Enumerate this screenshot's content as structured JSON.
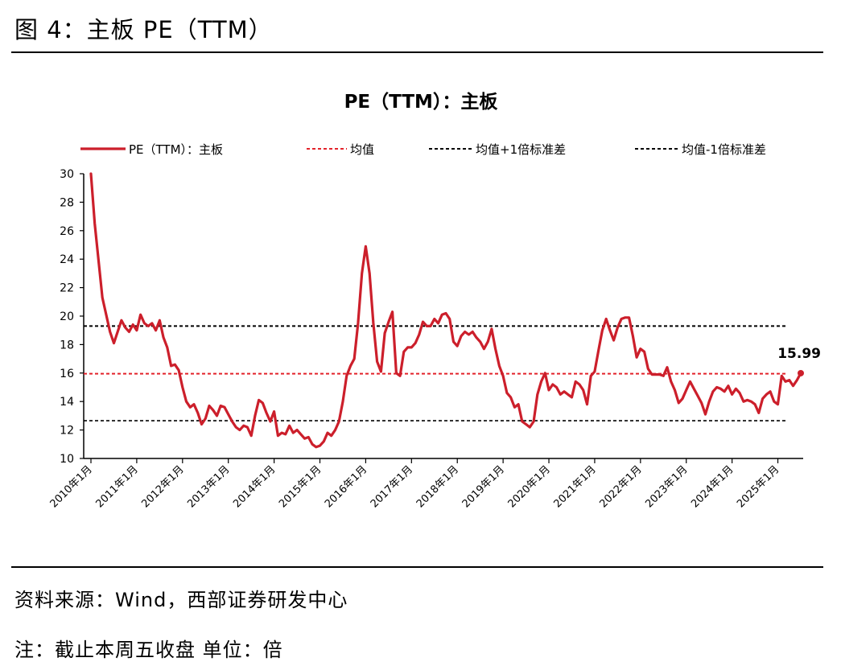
{
  "figure_title": "图 4：主板 PE（TTM）",
  "source_text": "资料来源：Wind，西部证券研发中心",
  "note_text": "注：截止本周五收盘 单位：倍",
  "colors": {
    "series": "#cc1f2b",
    "mean": "#e3232b",
    "band": "#000000"
  },
  "chart_data": {
    "type": "line",
    "title": "PE（TTM）：主板",
    "legend_position": "top",
    "legend": [
      {
        "label": "PE（TTM）：主板",
        "style": "solid"
      },
      {
        "label": "均值",
        "style": "dashed-red"
      },
      {
        "label": "均值+1倍标准差",
        "style": "dashed-black"
      },
      {
        "label": "均值-1倍标准差",
        "style": "dashed-black"
      }
    ],
    "ylim": [
      10,
      30
    ],
    "yticks": [
      10,
      12,
      14,
      16,
      18,
      20,
      22,
      24,
      26,
      28,
      30
    ],
    "xlim": [
      "2010-01",
      "2025-07"
    ],
    "xticks": [
      "2010年1月",
      "2011年1月",
      "2012年1月",
      "2013年1月",
      "2014年1月",
      "2015年1月",
      "2016年1月",
      "2017年1月",
      "2018年1月",
      "2019年1月",
      "2020年1月",
      "2021年1月",
      "2022年1月",
      "2023年1月",
      "2024年1月",
      "2025年1月"
    ],
    "grid": false,
    "mean": 15.95,
    "mean_plus_1sd": 19.3,
    "mean_minus_1sd": 12.65,
    "last_value_label": "15.99",
    "series": [
      {
        "name": "PE（TTM）：主板",
        "points": [
          [
            "2010-01",
            30.0
          ],
          [
            "2010-02",
            26.5
          ],
          [
            "2010-04",
            21.3
          ],
          [
            "2010-06",
            18.9
          ],
          [
            "2010-07",
            18.1
          ],
          [
            "2010-09",
            19.7
          ],
          [
            "2010-10",
            19.2
          ],
          [
            "2010-11",
            18.9
          ],
          [
            "2010-12",
            19.4
          ],
          [
            "2011-01",
            19.0
          ],
          [
            "2011-02",
            20.1
          ],
          [
            "2011-03",
            19.5
          ],
          [
            "2011-04",
            19.3
          ],
          [
            "2011-05",
            19.5
          ],
          [
            "2011-06",
            19.0
          ],
          [
            "2011-07",
            19.7
          ],
          [
            "2011-08",
            18.5
          ],
          [
            "2011-09",
            17.8
          ],
          [
            "2011-10",
            16.5
          ],
          [
            "2011-11",
            16.6
          ],
          [
            "2011-12",
            16.2
          ],
          [
            "2012-01",
            15.0
          ],
          [
            "2012-02",
            14.0
          ],
          [
            "2012-03",
            13.6
          ],
          [
            "2012-04",
            13.8
          ],
          [
            "2012-05",
            13.2
          ],
          [
            "2012-06",
            12.4
          ],
          [
            "2012-07",
            12.8
          ],
          [
            "2012-08",
            13.7
          ],
          [
            "2012-09",
            13.4
          ],
          [
            "2012-10",
            13.0
          ],
          [
            "2012-11",
            13.7
          ],
          [
            "2012-12",
            13.6
          ],
          [
            "2013-01",
            13.1
          ],
          [
            "2013-02",
            12.6
          ],
          [
            "2013-03",
            12.2
          ],
          [
            "2013-04",
            12.0
          ],
          [
            "2013-05",
            12.3
          ],
          [
            "2013-06",
            12.2
          ],
          [
            "2013-07",
            11.6
          ],
          [
            "2013-08",
            13.0
          ],
          [
            "2013-09",
            14.1
          ],
          [
            "2013-10",
            13.9
          ],
          [
            "2013-11",
            13.2
          ],
          [
            "2013-12",
            12.6
          ],
          [
            "2014-01",
            13.3
          ],
          [
            "2014-02",
            11.6
          ],
          [
            "2014-03",
            11.8
          ],
          [
            "2014-04",
            11.7
          ],
          [
            "2014-05",
            12.3
          ],
          [
            "2014-06",
            11.8
          ],
          [
            "2014-07",
            12.0
          ],
          [
            "2014-08",
            11.7
          ],
          [
            "2014-09",
            11.4
          ],
          [
            "2014-10",
            11.5
          ],
          [
            "2014-11",
            11.0
          ],
          [
            "2014-12",
            10.8
          ],
          [
            "2015-01",
            10.9
          ],
          [
            "2015-02",
            11.2
          ],
          [
            "2015-03",
            11.8
          ],
          [
            "2015-04",
            11.6
          ],
          [
            "2015-05",
            12.0
          ],
          [
            "2015-06",
            12.6
          ],
          [
            "2015-07",
            14.0
          ],
          [
            "2015-08",
            15.8
          ],
          [
            "2015-09",
            16.5
          ],
          [
            "2015-10",
            17.0
          ],
          [
            "2015-11",
            19.5
          ],
          [
            "2015-12",
            23.0
          ],
          [
            "2016-01",
            24.9
          ],
          [
            "2016-02",
            23.0
          ],
          [
            "2016-03",
            19.5
          ],
          [
            "2016-04",
            16.8
          ],
          [
            "2016-05",
            16.1
          ],
          [
            "2016-06",
            18.8
          ],
          [
            "2016-07",
            19.6
          ],
          [
            "2016-08",
            20.3
          ],
          [
            "2016-09",
            16.0
          ],
          [
            "2016-10",
            15.8
          ],
          [
            "2016-11",
            17.5
          ],
          [
            "2016-12",
            17.8
          ],
          [
            "2017-01",
            17.8
          ],
          [
            "2017-02",
            18.1
          ],
          [
            "2017-03",
            18.7
          ],
          [
            "2017-04",
            19.6
          ],
          [
            "2017-05",
            19.3
          ],
          [
            "2017-06",
            19.3
          ],
          [
            "2017-07",
            19.8
          ],
          [
            "2017-08",
            19.5
          ],
          [
            "2017-09",
            20.1
          ],
          [
            "2017-10",
            20.2
          ],
          [
            "2017-11",
            19.8
          ],
          [
            "2017-12",
            18.2
          ],
          [
            "2018-01",
            17.9
          ],
          [
            "2018-02",
            18.6
          ],
          [
            "2018-03",
            18.9
          ],
          [
            "2018-04",
            18.7
          ],
          [
            "2018-05",
            18.9
          ],
          [
            "2018-06",
            18.5
          ],
          [
            "2018-07",
            18.2
          ],
          [
            "2018-08",
            17.7
          ],
          [
            "2018-09",
            18.2
          ],
          [
            "2018-10",
            19.1
          ],
          [
            "2018-11",
            17.7
          ],
          [
            "2018-12",
            16.5
          ],
          [
            "2019-01",
            15.8
          ],
          [
            "2019-02",
            14.6
          ],
          [
            "2019-03",
            14.3
          ],
          [
            "2019-04",
            13.6
          ],
          [
            "2019-05",
            13.8
          ],
          [
            "2019-06",
            12.6
          ],
          [
            "2019-07",
            12.4
          ],
          [
            "2019-08",
            12.2
          ],
          [
            "2019-09",
            12.6
          ],
          [
            "2019-10",
            14.5
          ],
          [
            "2019-11",
            15.4
          ],
          [
            "2019-12",
            16.0
          ],
          [
            "2020-01",
            14.8
          ],
          [
            "2020-02",
            15.2
          ],
          [
            "2020-03",
            15.0
          ],
          [
            "2020-04",
            14.5
          ],
          [
            "2020-05",
            14.7
          ],
          [
            "2020-06",
            14.5
          ],
          [
            "2020-07",
            14.3
          ],
          [
            "2020-08",
            15.4
          ],
          [
            "2020-09",
            15.2
          ],
          [
            "2020-10",
            14.8
          ],
          [
            "2020-11",
            13.8
          ],
          [
            "2020-12",
            15.8
          ],
          [
            "2021-01",
            16.1
          ],
          [
            "2021-02",
            17.6
          ],
          [
            "2021-03",
            19.0
          ],
          [
            "2021-04",
            19.8
          ],
          [
            "2021-05",
            19.0
          ],
          [
            "2021-06",
            18.3
          ],
          [
            "2021-07",
            19.2
          ],
          [
            "2021-08",
            19.8
          ],
          [
            "2021-09",
            19.9
          ],
          [
            "2021-10",
            19.9
          ],
          [
            "2021-11",
            18.6
          ],
          [
            "2021-12",
            17.1
          ],
          [
            "2022-01",
            17.7
          ],
          [
            "2022-02",
            17.5
          ],
          [
            "2022-03",
            16.3
          ],
          [
            "2022-04",
            15.9
          ],
          [
            "2022-05",
            15.9
          ],
          [
            "2022-06",
            15.9
          ],
          [
            "2022-07",
            15.8
          ],
          [
            "2022-08",
            16.4
          ],
          [
            "2022-09",
            15.4
          ],
          [
            "2022-10",
            14.8
          ],
          [
            "2022-11",
            13.9
          ],
          [
            "2022-12",
            14.2
          ],
          [
            "2023-01",
            14.8
          ],
          [
            "2023-02",
            15.4
          ],
          [
            "2023-03",
            14.9
          ],
          [
            "2023-04",
            14.4
          ],
          [
            "2023-05",
            13.9
          ],
          [
            "2023-06",
            13.1
          ],
          [
            "2023-07",
            14.0
          ],
          [
            "2023-08",
            14.7
          ],
          [
            "2023-09",
            15.0
          ],
          [
            "2023-10",
            14.9
          ],
          [
            "2023-11",
            14.7
          ],
          [
            "2023-12",
            15.1
          ],
          [
            "2024-01",
            14.5
          ],
          [
            "2024-02",
            14.9
          ],
          [
            "2024-03",
            14.6
          ],
          [
            "2024-04",
            14.0
          ],
          [
            "2024-05",
            14.1
          ],
          [
            "2024-06",
            14.0
          ],
          [
            "2024-07",
            13.8
          ],
          [
            "2024-08",
            13.2
          ],
          [
            "2024-09",
            14.2
          ],
          [
            "2024-10",
            14.5
          ],
          [
            "2024-11",
            14.7
          ],
          [
            "2024-12",
            14.0
          ],
          [
            "2025-01",
            13.8
          ],
          [
            "2025-02",
            15.8
          ],
          [
            "2025-03",
            15.4
          ],
          [
            "2025-04",
            15.5
          ],
          [
            "2025-05",
            15.1
          ],
          [
            "2025-06",
            15.5
          ],
          [
            "2025-07",
            15.99
          ]
        ]
      }
    ]
  }
}
